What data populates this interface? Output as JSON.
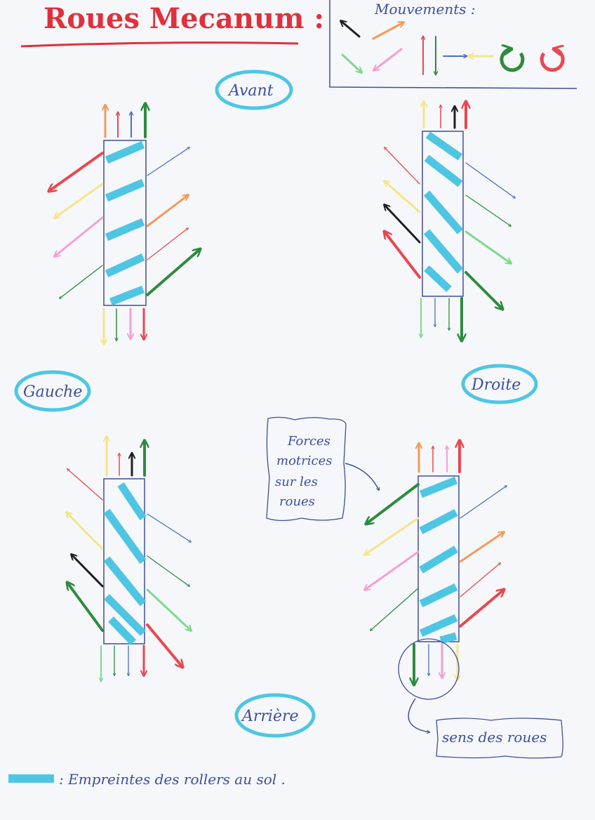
{
  "title": "Roues Mecanum :",
  "legend_box": {
    "title": "Mouvements :",
    "items": [
      {
        "name": "diagonal-back-left",
        "color": "#1f1f1f"
      },
      {
        "name": "diagonal-front-right",
        "color": "#f39a5a"
      },
      {
        "name": "diagonal-back-right",
        "color": "#7fd98a"
      },
      {
        "name": "diagonal-front-left",
        "color": "#f3a0d4"
      },
      {
        "name": "forward",
        "color": "#e8484f"
      },
      {
        "name": "backward",
        "color": "#2e8b3e"
      },
      {
        "name": "right",
        "color": "#4a6fc4"
      },
      {
        "name": "left",
        "color": "#f4e58a"
      },
      {
        "name": "rotate-clockwise",
        "color": "#2e8b3e"
      },
      {
        "name": "rotate-counterclockwise",
        "color": "#e8484f"
      }
    ]
  },
  "labels": {
    "front": "Avant",
    "left": "Gauche",
    "right": "Droite",
    "back": "Arrière"
  },
  "callouts": {
    "forces_lines": [
      "Forces",
      "motrices",
      "sur les",
      "roues"
    ],
    "wheel_direction": "sens des roues"
  },
  "footer_legend": ": Empreintes des rollers au sol ."
}
